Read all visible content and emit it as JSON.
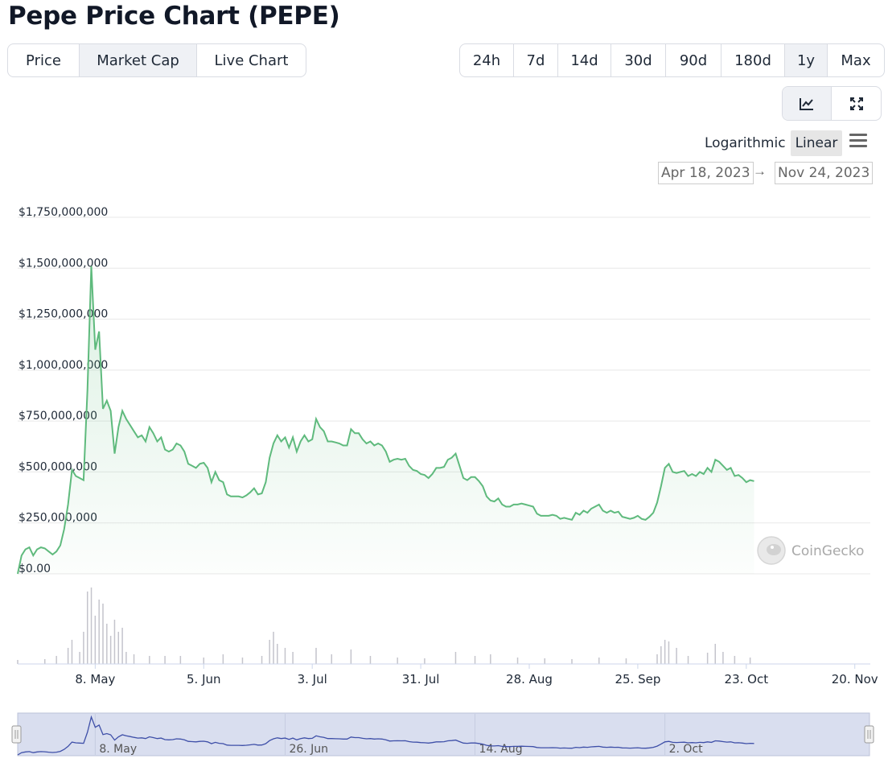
{
  "title": "Pepe Price Chart (PEPE)",
  "tabs": [
    {
      "label": "Price",
      "active": false
    },
    {
      "label": "Market Cap",
      "active": true
    },
    {
      "label": "Live Chart",
      "active": false
    }
  ],
  "ranges": [
    {
      "label": "24h",
      "active": false
    },
    {
      "label": "7d",
      "active": false
    },
    {
      "label": "14d",
      "active": false
    },
    {
      "label": "30d",
      "active": false
    },
    {
      "label": "90d",
      "active": false
    },
    {
      "label": "180d",
      "active": false
    },
    {
      "label": "1y",
      "active": true
    },
    {
      "label": "Max",
      "active": false
    }
  ],
  "tools": [
    {
      "icon": "line-chart-icon",
      "active": true
    },
    {
      "icon": "expand-icon",
      "active": false
    }
  ],
  "scale": {
    "logarithmic": "Logarithmic",
    "linear": "Linear",
    "selected": "Linear"
  },
  "date_range": {
    "from": "Apr 18, 2023",
    "arrow": "→",
    "to": "Nov 24, 2023"
  },
  "watermark": "CoinGecko",
  "colors": {
    "line": "#5fba7d",
    "volume": "#c4c4cc",
    "navigator": "#3e4fa8",
    "navigator_bg": "#d9deef"
  },
  "chart_data": {
    "type": "area",
    "start_date": "2023-04-18",
    "end_date": "2023-11-24",
    "ylim": [
      0,
      1750000000
    ],
    "yticks": [
      {
        "value": 0,
        "label": "$0.00"
      },
      {
        "value": 250000000,
        "label": "$250,000,000"
      },
      {
        "value": 500000000,
        "label": "$500,000,000"
      },
      {
        "value": 750000000,
        "label": "$750,000,000"
      },
      {
        "value": 1000000000,
        "label": "$1,000,000,000"
      },
      {
        "value": 1250000000,
        "label": "$1,250,000,000"
      },
      {
        "value": 1500000000,
        "label": "$1,500,000,000"
      },
      {
        "value": 1750000000,
        "label": "$1,750,000,000"
      }
    ],
    "xticks": [
      {
        "date": "2023-05-08",
        "label": "8. May"
      },
      {
        "date": "2023-06-05",
        "label": "5. Jun"
      },
      {
        "date": "2023-07-03",
        "label": "3. Jul"
      },
      {
        "date": "2023-07-31",
        "label": "31. Jul"
      },
      {
        "date": "2023-08-28",
        "label": "28. Aug"
      },
      {
        "date": "2023-09-25",
        "label": "25. Sep"
      },
      {
        "date": "2023-10-23",
        "label": "23. Oct"
      },
      {
        "date": "2023-11-20",
        "label": "20. Nov"
      }
    ],
    "navigator_ticks": [
      {
        "date": "2023-05-08",
        "label": "8. May"
      },
      {
        "date": "2023-06-26",
        "label": "26. Jun"
      },
      {
        "date": "2023-08-14",
        "label": "14. Aug"
      },
      {
        "date": "2023-10-02",
        "label": "2. Oct"
      }
    ],
    "series": [
      {
        "values": [
          [
            "2023-04-18",
            0
          ],
          [
            "2023-04-19",
            90000000
          ],
          [
            "2023-04-20",
            120000000
          ],
          [
            "2023-04-21",
            130000000
          ],
          [
            "2023-04-22",
            90000000
          ],
          [
            "2023-04-23",
            120000000
          ],
          [
            "2023-04-24",
            130000000
          ],
          [
            "2023-04-25",
            125000000
          ],
          [
            "2023-04-26",
            110000000
          ],
          [
            "2023-04-27",
            95000000
          ],
          [
            "2023-04-28",
            110000000
          ],
          [
            "2023-04-29",
            140000000
          ],
          [
            "2023-04-30",
            220000000
          ],
          [
            "2023-05-01",
            340000000
          ],
          [
            "2023-05-02",
            510000000
          ],
          [
            "2023-05-03",
            480000000
          ],
          [
            "2023-05-04",
            470000000
          ],
          [
            "2023-05-05",
            460000000
          ],
          [
            "2023-05-06",
            900000000
          ],
          [
            "2023-05-07",
            1510000000
          ],
          [
            "2023-05-08",
            1100000000
          ],
          [
            "2023-05-09",
            1190000000
          ],
          [
            "2023-05-10",
            810000000
          ],
          [
            "2023-05-11",
            850000000
          ],
          [
            "2023-05-12",
            800000000
          ],
          [
            "2023-05-13",
            590000000
          ],
          [
            "2023-05-14",
            720000000
          ],
          [
            "2023-05-15",
            800000000
          ],
          [
            "2023-05-16",
            760000000
          ],
          [
            "2023-05-17",
            730000000
          ],
          [
            "2023-05-18",
            700000000
          ],
          [
            "2023-05-19",
            670000000
          ],
          [
            "2023-05-20",
            680000000
          ],
          [
            "2023-05-21",
            650000000
          ],
          [
            "2023-05-22",
            720000000
          ],
          [
            "2023-05-23",
            690000000
          ],
          [
            "2023-05-24",
            650000000
          ],
          [
            "2023-05-25",
            670000000
          ],
          [
            "2023-05-26",
            610000000
          ],
          [
            "2023-05-27",
            600000000
          ],
          [
            "2023-05-28",
            610000000
          ],
          [
            "2023-05-29",
            640000000
          ],
          [
            "2023-05-30",
            630000000
          ],
          [
            "2023-05-31",
            600000000
          ],
          [
            "2023-06-01",
            540000000
          ],
          [
            "2023-06-02",
            530000000
          ],
          [
            "2023-06-03",
            520000000
          ],
          [
            "2023-06-04",
            540000000
          ],
          [
            "2023-06-05",
            545000000
          ],
          [
            "2023-06-06",
            520000000
          ],
          [
            "2023-06-07",
            450000000
          ],
          [
            "2023-06-08",
            500000000
          ],
          [
            "2023-06-09",
            460000000
          ],
          [
            "2023-06-10",
            450000000
          ],
          [
            "2023-06-11",
            390000000
          ],
          [
            "2023-06-12",
            380000000
          ],
          [
            "2023-06-13",
            380000000
          ],
          [
            "2023-06-14",
            380000000
          ],
          [
            "2023-06-15",
            375000000
          ],
          [
            "2023-06-16",
            385000000
          ],
          [
            "2023-06-17",
            400000000
          ],
          [
            "2023-06-18",
            420000000
          ],
          [
            "2023-06-19",
            390000000
          ],
          [
            "2023-06-20",
            395000000
          ],
          [
            "2023-06-21",
            450000000
          ],
          [
            "2023-06-22",
            570000000
          ],
          [
            "2023-06-23",
            640000000
          ],
          [
            "2023-06-24",
            680000000
          ],
          [
            "2023-06-25",
            650000000
          ],
          [
            "2023-06-26",
            670000000
          ],
          [
            "2023-06-27",
            620000000
          ],
          [
            "2023-06-28",
            670000000
          ],
          [
            "2023-06-29",
            600000000
          ],
          [
            "2023-06-30",
            650000000
          ],
          [
            "2023-07-01",
            680000000
          ],
          [
            "2023-07-02",
            650000000
          ],
          [
            "2023-07-03",
            660000000
          ],
          [
            "2023-07-04",
            760000000
          ],
          [
            "2023-07-05",
            720000000
          ],
          [
            "2023-07-06",
            700000000
          ],
          [
            "2023-07-07",
            650000000
          ],
          [
            "2023-07-08",
            650000000
          ],
          [
            "2023-07-09",
            645000000
          ],
          [
            "2023-07-10",
            640000000
          ],
          [
            "2023-07-11",
            630000000
          ],
          [
            "2023-07-12",
            630000000
          ],
          [
            "2023-07-13",
            710000000
          ],
          [
            "2023-07-14",
            690000000
          ],
          [
            "2023-07-15",
            690000000
          ],
          [
            "2023-07-16",
            660000000
          ],
          [
            "2023-07-17",
            640000000
          ],
          [
            "2023-07-18",
            650000000
          ],
          [
            "2023-07-19",
            630000000
          ],
          [
            "2023-07-20",
            640000000
          ],
          [
            "2023-07-21",
            630000000
          ],
          [
            "2023-07-22",
            600000000
          ],
          [
            "2023-07-23",
            550000000
          ],
          [
            "2023-07-24",
            560000000
          ],
          [
            "2023-07-25",
            565000000
          ],
          [
            "2023-07-26",
            560000000
          ],
          [
            "2023-07-27",
            565000000
          ],
          [
            "2023-07-28",
            530000000
          ],
          [
            "2023-07-29",
            510000000
          ],
          [
            "2023-07-30",
            505000000
          ],
          [
            "2023-07-31",
            490000000
          ],
          [
            "2023-08-01",
            485000000
          ],
          [
            "2023-08-02",
            470000000
          ],
          [
            "2023-08-03",
            490000000
          ],
          [
            "2023-08-04",
            520000000
          ],
          [
            "2023-08-05",
            520000000
          ],
          [
            "2023-08-06",
            525000000
          ],
          [
            "2023-08-07",
            560000000
          ],
          [
            "2023-08-08",
            570000000
          ],
          [
            "2023-08-09",
            590000000
          ],
          [
            "2023-08-10",
            530000000
          ],
          [
            "2023-08-11",
            470000000
          ],
          [
            "2023-08-12",
            460000000
          ],
          [
            "2023-08-13",
            475000000
          ],
          [
            "2023-08-14",
            475000000
          ],
          [
            "2023-08-15",
            455000000
          ],
          [
            "2023-08-16",
            430000000
          ],
          [
            "2023-08-17",
            380000000
          ],
          [
            "2023-08-18",
            360000000
          ],
          [
            "2023-08-19",
            355000000
          ],
          [
            "2023-08-20",
            370000000
          ],
          [
            "2023-08-21",
            340000000
          ],
          [
            "2023-08-22",
            330000000
          ],
          [
            "2023-08-23",
            330000000
          ],
          [
            "2023-08-24",
            340000000
          ],
          [
            "2023-08-25",
            340000000
          ],
          [
            "2023-08-26",
            345000000
          ],
          [
            "2023-08-27",
            340000000
          ],
          [
            "2023-08-28",
            335000000
          ],
          [
            "2023-08-29",
            330000000
          ],
          [
            "2023-08-30",
            295000000
          ],
          [
            "2023-08-31",
            285000000
          ],
          [
            "2023-09-01",
            285000000
          ],
          [
            "2023-09-02",
            285000000
          ],
          [
            "2023-09-03",
            290000000
          ],
          [
            "2023-09-04",
            285000000
          ],
          [
            "2023-09-05",
            270000000
          ],
          [
            "2023-09-06",
            275000000
          ],
          [
            "2023-09-07",
            270000000
          ],
          [
            "2023-09-08",
            265000000
          ],
          [
            "2023-09-09",
            300000000
          ],
          [
            "2023-09-10",
            290000000
          ],
          [
            "2023-09-11",
            310000000
          ],
          [
            "2023-09-12",
            300000000
          ],
          [
            "2023-09-13",
            320000000
          ],
          [
            "2023-09-14",
            330000000
          ],
          [
            "2023-09-15",
            340000000
          ],
          [
            "2023-09-16",
            310000000
          ],
          [
            "2023-09-17",
            300000000
          ],
          [
            "2023-09-18",
            310000000
          ],
          [
            "2023-09-19",
            300000000
          ],
          [
            "2023-09-20",
            305000000
          ],
          [
            "2023-09-21",
            280000000
          ],
          [
            "2023-09-22",
            275000000
          ],
          [
            "2023-09-23",
            270000000
          ],
          [
            "2023-09-24",
            275000000
          ],
          [
            "2023-09-25",
            285000000
          ],
          [
            "2023-09-26",
            270000000
          ],
          [
            "2023-09-27",
            265000000
          ],
          [
            "2023-09-28",
            280000000
          ],
          [
            "2023-09-29",
            300000000
          ],
          [
            "2023-09-30",
            350000000
          ],
          [
            "2023-10-01",
            430000000
          ],
          [
            "2023-10-02",
            520000000
          ],
          [
            "2023-10-03",
            540000000
          ],
          [
            "2023-10-04",
            500000000
          ],
          [
            "2023-10-05",
            495000000
          ],
          [
            "2023-10-06",
            500000000
          ],
          [
            "2023-10-07",
            505000000
          ],
          [
            "2023-10-08",
            480000000
          ],
          [
            "2023-10-09",
            490000000
          ],
          [
            "2023-10-10",
            480000000
          ],
          [
            "2023-10-11",
            500000000
          ],
          [
            "2023-10-12",
            490000000
          ],
          [
            "2023-10-13",
            520000000
          ],
          [
            "2023-10-14",
            500000000
          ],
          [
            "2023-10-15",
            560000000
          ],
          [
            "2023-10-16",
            550000000
          ],
          [
            "2023-10-17",
            530000000
          ],
          [
            "2023-10-18",
            510000000
          ],
          [
            "2023-10-19",
            520000000
          ],
          [
            "2023-10-20",
            480000000
          ],
          [
            "2023-10-21",
            485000000
          ],
          [
            "2023-10-22",
            470000000
          ],
          [
            "2023-10-23",
            450000000
          ],
          [
            "2023-10-24",
            460000000
          ],
          [
            "2023-10-25",
            455000000
          ]
        ]
      }
    ],
    "volume": [
      [
        "2023-04-18",
        5
      ],
      [
        "2023-04-25",
        6
      ],
      [
        "2023-04-28",
        10
      ],
      [
        "2023-05-01",
        20
      ],
      [
        "2023-05-02",
        30
      ],
      [
        "2023-05-04",
        15
      ],
      [
        "2023-05-05",
        40
      ],
      [
        "2023-05-06",
        90
      ],
      [
        "2023-05-07",
        95
      ],
      [
        "2023-05-08",
        60
      ],
      [
        "2023-05-09",
        80
      ],
      [
        "2023-05-10",
        75
      ],
      [
        "2023-05-11",
        50
      ],
      [
        "2023-05-12",
        35
      ],
      [
        "2023-05-13",
        55
      ],
      [
        "2023-05-14",
        40
      ],
      [
        "2023-05-15",
        45
      ],
      [
        "2023-05-16",
        15
      ],
      [
        "2023-05-18",
        12
      ],
      [
        "2023-05-22",
        10
      ],
      [
        "2023-05-26",
        10
      ],
      [
        "2023-05-30",
        10
      ],
      [
        "2023-06-05",
        8
      ],
      [
        "2023-06-10",
        12
      ],
      [
        "2023-06-15",
        8
      ],
      [
        "2023-06-20",
        10
      ],
      [
        "2023-06-22",
        30
      ],
      [
        "2023-06-23",
        40
      ],
      [
        "2023-06-24",
        25
      ],
      [
        "2023-06-26",
        20
      ],
      [
        "2023-06-28",
        15
      ],
      [
        "2023-07-04",
        20
      ],
      [
        "2023-07-08",
        12
      ],
      [
        "2023-07-13",
        18
      ],
      [
        "2023-07-18",
        10
      ],
      [
        "2023-07-25",
        8
      ],
      [
        "2023-08-01",
        7
      ],
      [
        "2023-08-09",
        15
      ],
      [
        "2023-08-14",
        10
      ],
      [
        "2023-08-18",
        12
      ],
      [
        "2023-08-25",
        8
      ],
      [
        "2023-09-01",
        7
      ],
      [
        "2023-09-08",
        6
      ],
      [
        "2023-09-15",
        8
      ],
      [
        "2023-09-22",
        7
      ],
      [
        "2023-09-30",
        12
      ],
      [
        "2023-10-01",
        22
      ],
      [
        "2023-10-02",
        30
      ],
      [
        "2023-10-03",
        28
      ],
      [
        "2023-10-05",
        20
      ],
      [
        "2023-10-08",
        10
      ],
      [
        "2023-10-13",
        14
      ],
      [
        "2023-10-15",
        25
      ],
      [
        "2023-10-17",
        15
      ],
      [
        "2023-10-20",
        10
      ],
      [
        "2023-10-24",
        8
      ]
    ]
  }
}
